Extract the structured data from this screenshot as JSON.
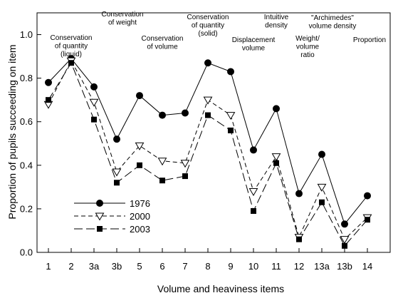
{
  "chart_data": {
    "type": "line",
    "title": "",
    "xlabel": "Volume and heaviness items",
    "ylabel": "Proportion of pupils succeeding on item",
    "ylim": [
      0,
      1.1
    ],
    "yticks": [
      "0.0",
      "0.2",
      "0.4",
      "0.6",
      "0.8",
      "1.0"
    ],
    "yticks_values": [
      0,
      0.2,
      0.4,
      0.6,
      0.8,
      1.0
    ],
    "grid": false,
    "legend_position": "lower-left",
    "categories": [
      "1",
      "2",
      "3a",
      "3b",
      "5",
      "6",
      "7",
      "8",
      "9",
      "10",
      "11",
      "12",
      "13a",
      "13b",
      "14"
    ],
    "series": [
      {
        "name": "1976",
        "marker": "filled-circle",
        "dash": "solid",
        "values": [
          0.78,
          0.89,
          0.76,
          0.52,
          0.72,
          0.63,
          0.64,
          0.87,
          0.83,
          0.47,
          0.66,
          0.27,
          0.45,
          0.13,
          0.26
        ]
      },
      {
        "name": "2000",
        "marker": "open-triangle-down",
        "dash": "dashed",
        "values": [
          0.68,
          0.88,
          0.69,
          0.37,
          0.49,
          0.42,
          0.41,
          0.7,
          0.63,
          0.28,
          0.44,
          0.07,
          0.3,
          0.06,
          0.16
        ]
      },
      {
        "name": "2003",
        "marker": "filled-square",
        "dash": "longdash",
        "values": [
          0.7,
          0.87,
          0.61,
          0.32,
          0.4,
          0.33,
          0.35,
          0.63,
          0.56,
          0.19,
          0.41,
          0.06,
          0.23,
          0.03,
          0.15
        ]
      }
    ],
    "annotations": [
      {
        "category": "2",
        "lines": [
          "Conservation",
          "of quantity",
          "(liquid)"
        ]
      },
      {
        "category": "3a",
        "lines": [
          "Conservation",
          "of weight"
        ]
      },
      {
        "category": "6",
        "lines": [
          "Conservation",
          "of volume"
        ]
      },
      {
        "category": "8",
        "lines": [
          "Conservation",
          "of quantity",
          "(solid)"
        ]
      },
      {
        "category": "10",
        "lines": [
          "Displacement",
          "volume"
        ]
      },
      {
        "category": "11",
        "lines": [
          "Intuitive",
          "density"
        ]
      },
      {
        "category": "12",
        "lines": [
          "Weight/",
          "volume",
          "ratio"
        ]
      },
      {
        "category": "13a",
        "lines": [
          "\"Archimedes\"",
          "volume density"
        ]
      },
      {
        "category": "14",
        "lines": [
          "Proportion"
        ]
      }
    ]
  }
}
